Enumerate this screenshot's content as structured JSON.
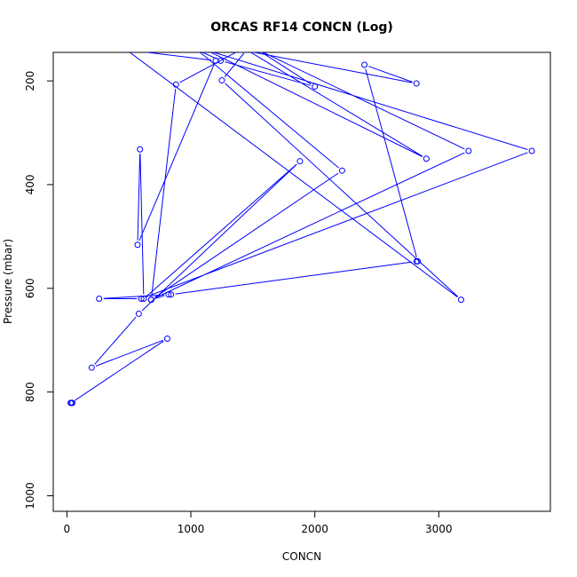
{
  "chart_data": {
    "type": "line",
    "title": "ORCAS RF14 CONCN (Log)",
    "xlabel": "CONCN",
    "ylabel": "Pressure (mbar)",
    "xlim": [
      -110,
      3900
    ],
    "ylim": [
      1030,
      145
    ],
    "y_reversed": true,
    "grid": false,
    "x_ticks": [
      0,
      1000,
      2000,
      3000
    ],
    "y_ticks": [
      200,
      400,
      600,
      800,
      1000
    ],
    "colors": {
      "series": "#0000ff",
      "axis": "#000000"
    },
    "series": [
      {
        "x": [
          30,
          45,
          35,
          810,
          200,
          580,
          1880,
          620,
          590,
          570,
          1200,
          480,
          3180,
          1250,
          1450,
          2900,
          1120,
          3750,
          600,
          260,
          820,
          680,
          3240,
          1540,
          2000,
          1240,
          1050,
          2220,
          680,
          880,
          1400,
          2820,
          2400,
          2830,
          2820,
          840
        ],
        "y": [
          821,
          821,
          821,
          697,
          753,
          649,
          355,
          620,
          332,
          516,
          161,
          140,
          622,
          199,
          140,
          350,
          140,
          335,
          620,
          620,
          612,
          622,
          335,
          140,
          211,
          161,
          140,
          373,
          622,
          207,
          140,
          205,
          169,
          548,
          548,
          612
        ]
      }
    ]
  }
}
